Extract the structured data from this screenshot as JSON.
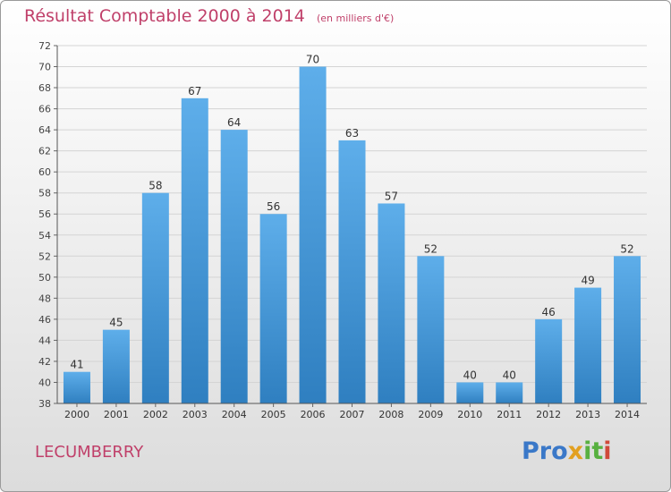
{
  "header": {
    "title": "Résultat Comptable 2000 à 2014",
    "unit": "(en milliers d'€)"
  },
  "footer": {
    "place": "LECUMBERRY",
    "logo": {
      "p1": "Pro",
      "p2": "x",
      "p3": "it",
      "p4": "i"
    }
  },
  "colors": {
    "bar_top": "#5eaeea",
    "bar_bottom": "#2f7fc0",
    "title": "#c0406a",
    "grid": "#d4d4d4"
  },
  "chart_data": {
    "type": "bar",
    "title": "Résultat Comptable 2000 à 2014",
    "subtitle": "(en milliers d'€)",
    "xlabel": "",
    "ylabel": "",
    "categories": [
      "2000",
      "2001",
      "2002",
      "2003",
      "2004",
      "2005",
      "2006",
      "2007",
      "2008",
      "2009",
      "2010",
      "2011",
      "2012",
      "2013",
      "2014"
    ],
    "values": [
      41,
      45,
      58,
      67,
      64,
      56,
      70,
      63,
      57,
      52,
      40,
      40,
      46,
      49,
      52
    ],
    "ylim": [
      38,
      72
    ],
    "yticks": [
      38,
      40,
      42,
      44,
      46,
      48,
      50,
      52,
      54,
      56,
      58,
      60,
      62,
      64,
      66,
      68,
      70,
      72
    ],
    "grid": true,
    "data_labels": true
  }
}
